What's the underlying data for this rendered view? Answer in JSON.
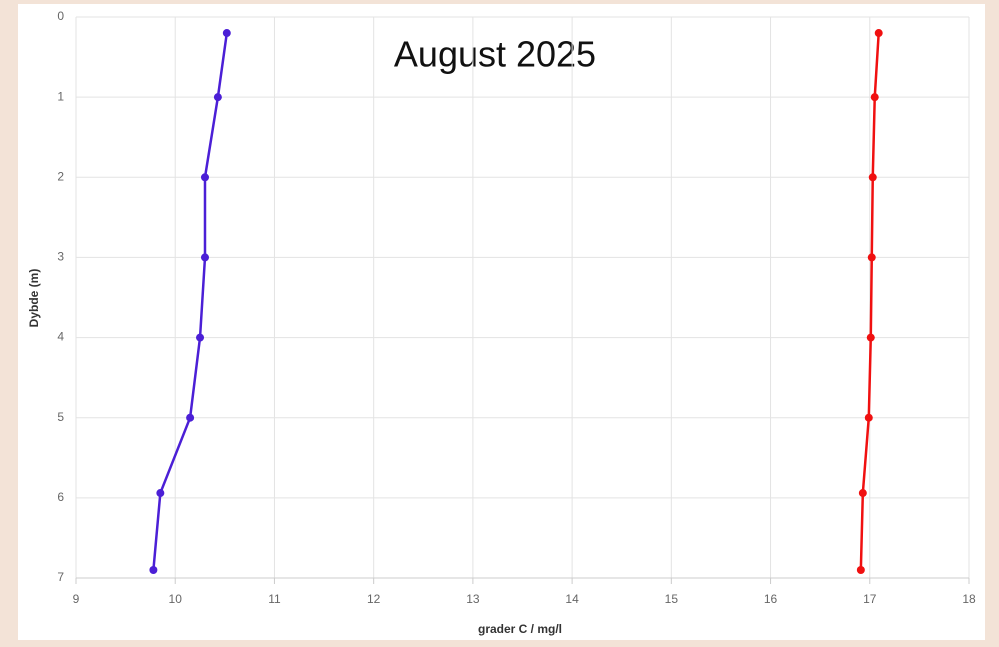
{
  "chart_data": {
    "type": "line",
    "title": "August 2025",
    "x_label": "grader C / mg/l",
    "y_label": "Dybde (m)",
    "xlim": [
      9,
      18
    ],
    "xticks": [
      9,
      10,
      11,
      12,
      13,
      14,
      15,
      16,
      17,
      18
    ],
    "ylim": [
      7,
      0
    ],
    "yticks": [
      0,
      1,
      2,
      3,
      4,
      5,
      6,
      7
    ],
    "grid": true,
    "series": [
      {
        "color": "#4b1fd6",
        "x": [
          10.52,
          10.43,
          10.3,
          10.3,
          10.25,
          10.15,
          9.85,
          9.78
        ],
        "values": [
          0.2,
          1,
          2,
          3,
          4,
          5,
          5.94,
          6.9
        ]
      },
      {
        "color": "#f01010",
        "x": [
          17.09,
          17.05,
          17.03,
          17.02,
          17.01,
          16.99,
          16.93,
          16.91
        ],
        "values": [
          0.2,
          1,
          2,
          3,
          4,
          5,
          5.94,
          6.9
        ]
      }
    ]
  }
}
